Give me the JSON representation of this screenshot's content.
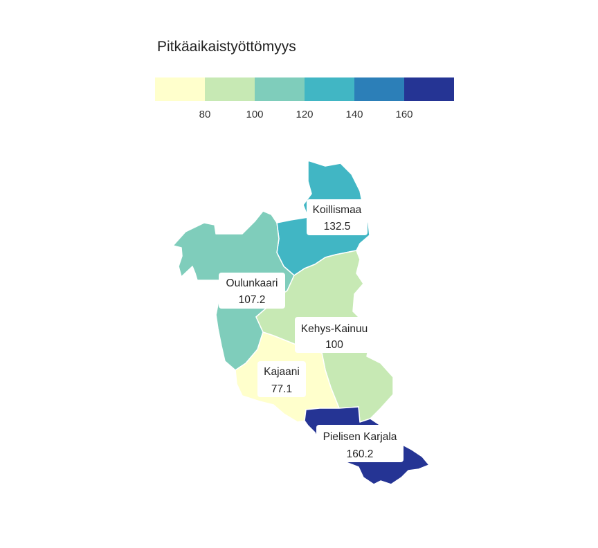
{
  "legend": {
    "title": "Pitkäaikaistyöttömyys",
    "bins": [
      {
        "color": "#ffffcc"
      },
      {
        "color": "#c7e9b4"
      },
      {
        "color": "#7fcdbb"
      },
      {
        "color": "#41b6c4"
      },
      {
        "color": "#2c7fb8"
      },
      {
        "color": "#253494"
      }
    ],
    "breaks": [
      "80",
      "100",
      "120",
      "140",
      "160"
    ]
  },
  "regions": [
    {
      "id": "koillismaa",
      "name": "Koillismaa",
      "value": "132.5",
      "color": "#41b6c4"
    },
    {
      "id": "oulunkaari",
      "name": "Oulunkaari",
      "value": "107.2",
      "color": "#7fcdbb"
    },
    {
      "id": "kehys-kainuu",
      "name": "Kehys-Kainuu",
      "value": "100",
      "color": "#c7e9b4"
    },
    {
      "id": "kajaani",
      "name": "Kajaani",
      "value": "77.1",
      "color": "#ffffcc"
    },
    {
      "id": "pielisen-karjala",
      "name": "Pielisen Karjala",
      "value": "160.2",
      "color": "#253494"
    }
  ]
}
